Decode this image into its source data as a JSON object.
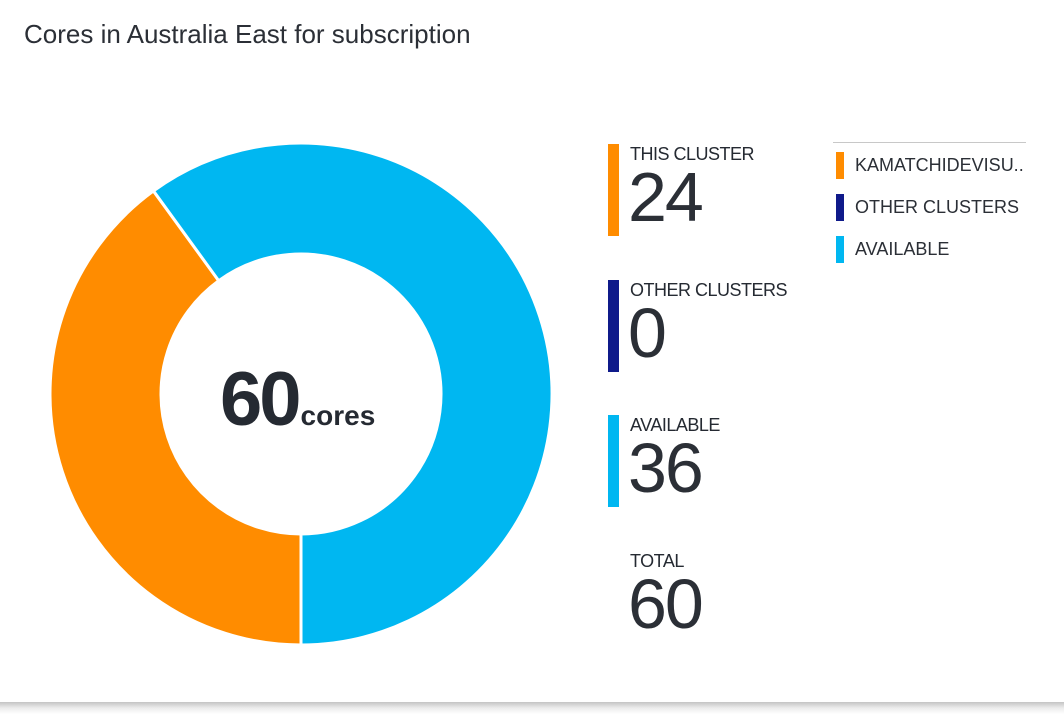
{
  "title": "Cores in Australia East for subscription",
  "chart_data": {
    "type": "pie",
    "variant": "donut",
    "title": "Cores in Australia East for subscription",
    "center": {
      "value": "60",
      "unit": "cores"
    },
    "slices": [
      {
        "name": "KAMATCHIDEVISU..",
        "value": 24,
        "color": "#ff8c00"
      },
      {
        "name": "OTHER CLUSTERS",
        "value": 0,
        "color": "#0f1a8a"
      },
      {
        "name": "AVAILABLE",
        "value": 36,
        "color": "#00b7f1"
      }
    ],
    "legend": {
      "placement": "right",
      "entries": [
        {
          "label": "KAMATCHIDEVISU..",
          "color": "#ff8c00"
        },
        {
          "label": "OTHER CLUSTERS",
          "color": "#0f1a8a"
        },
        {
          "label": "AVAILABLE",
          "color": "#00b7f1"
        }
      ]
    }
  },
  "stats": [
    {
      "label": "THIS CLUSTER",
      "value": "24",
      "color": "#ff8c00"
    },
    {
      "label": "OTHER CLUSTERS",
      "value": "0",
      "color": "#0f1a8a"
    },
    {
      "label": "AVAILABLE",
      "value": "36",
      "color": "#00b7f1"
    },
    {
      "label": "TOTAL",
      "value": "60",
      "color": ""
    }
  ]
}
